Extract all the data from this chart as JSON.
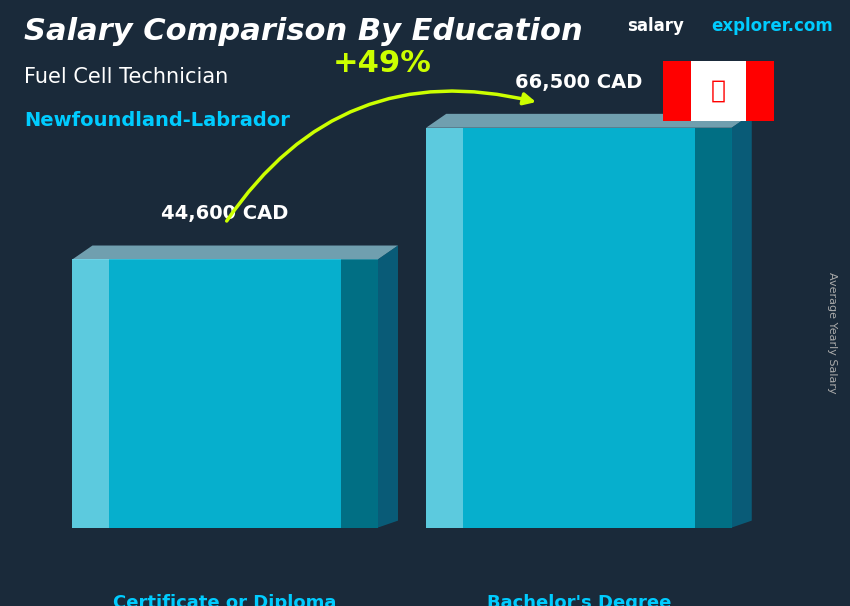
{
  "title_main": "Salary Comparison By Education",
  "title_sub": "Fuel Cell Technician",
  "title_region": "Newfoundland-Labrador",
  "brand_salary": "salary",
  "brand_explorer": "explorer.com",
  "ylabel_rotated": "Average Yearly Salary",
  "categories": [
    "Certificate or Diploma",
    "Bachelor's Degree"
  ],
  "values": [
    44600,
    66500
  ],
  "value_labels": [
    "44,600 CAD",
    "66,500 CAD"
  ],
  "pct_change": "+49%",
  "bar_color_face": "#00DDFF",
  "bar_color_light": "#66EEFF",
  "bar_color_dark": "#008899",
  "bar_alpha": 0.82,
  "bg_color": "#1a2a3a",
  "title_color": "#FFFFFF",
  "subtitle_color": "#FFFFFF",
  "region_color": "#00CCFF",
  "label_color": "#FFFFFF",
  "xticklabel_color": "#00CCFF",
  "pct_color": "#CCFF00",
  "arrow_color": "#CCFF00",
  "salary_brand_color": "#FFFFFF",
  "explorer_brand_color": "#00CCFF",
  "ylabel_color": "#AAAAAA",
  "figsize": [
    8.5,
    6.06
  ],
  "dpi": 100
}
